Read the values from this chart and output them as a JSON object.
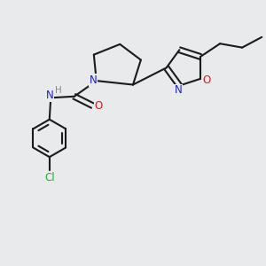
{
  "bg_color": "#e8eaeb",
  "bond_color": "#1a1a1a",
  "n_color": "#2020cc",
  "o_color": "#cc2020",
  "cl_color": "#33aa33",
  "h_color": "#888888",
  "line_width": 1.5,
  "figsize": [
    3.0,
    3.0
  ],
  "dpi": 100,
  "xlim": [
    0,
    10
  ],
  "ylim": [
    0,
    10
  ]
}
